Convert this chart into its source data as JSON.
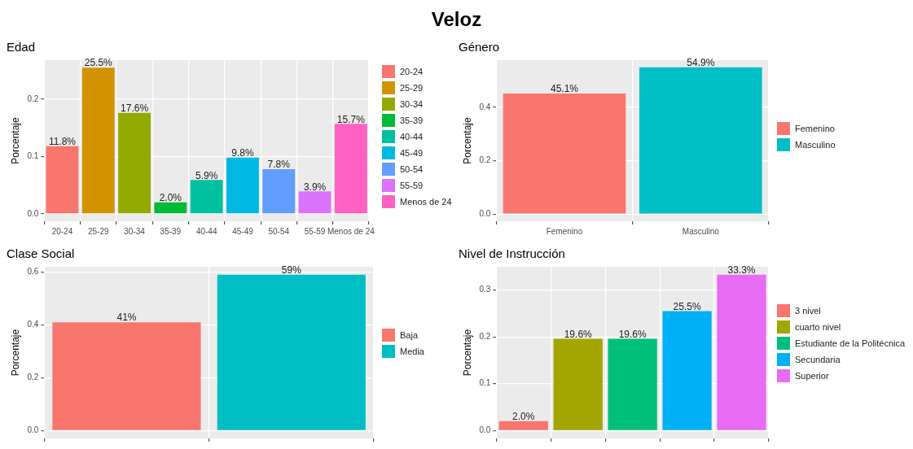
{
  "chart_data": [
    {
      "type": "other",
      "title": "Veloz"
    },
    {
      "type": "bar",
      "title": "Edad",
      "ylabel": "Porcentaje",
      "categories": [
        "20-24",
        "25-29",
        "30-34",
        "35-39",
        "40-44",
        "45-49",
        "50-54",
        "55-59",
        "Menos de 24"
      ],
      "series": [
        {
          "name": "20-24",
          "color": "#f8766d",
          "values": [
            0.118,
            null,
            null,
            null,
            null,
            null,
            null,
            null,
            null
          ],
          "value_labels": [
            "11.8%",
            null,
            null,
            null,
            null,
            null,
            null,
            null,
            null
          ]
        },
        {
          "name": "25-29",
          "color": "#d39200",
          "values": [
            null,
            0.255,
            null,
            null,
            null,
            null,
            null,
            null,
            null
          ],
          "value_labels": [
            null,
            "25.5%",
            null,
            null,
            null,
            null,
            null,
            null,
            null
          ]
        },
        {
          "name": "30-34",
          "color": "#93aa00",
          "values": [
            null,
            null,
            0.176,
            null,
            null,
            null,
            null,
            null,
            null
          ],
          "value_labels": [
            null,
            null,
            "17.6%",
            null,
            null,
            null,
            null,
            null,
            null
          ]
        },
        {
          "name": "35-39",
          "color": "#00ba38",
          "values": [
            null,
            null,
            null,
            0.02,
            null,
            null,
            null,
            null,
            null
          ],
          "value_labels": [
            null,
            null,
            null,
            "2.0%",
            null,
            null,
            null,
            null,
            null
          ]
        },
        {
          "name": "40-44",
          "color": "#00c19f",
          "values": [
            null,
            null,
            null,
            null,
            0.059,
            null,
            null,
            null,
            null
          ],
          "value_labels": [
            null,
            null,
            null,
            null,
            "5.9%",
            null,
            null,
            null,
            null
          ]
        },
        {
          "name": "45-49",
          "color": "#00b9e3",
          "values": [
            null,
            null,
            null,
            null,
            null,
            0.098,
            null,
            null,
            null
          ],
          "value_labels": [
            null,
            null,
            null,
            null,
            null,
            "9.8%",
            null,
            null,
            null
          ]
        },
        {
          "name": "50-54",
          "color": "#619cff",
          "values": [
            null,
            null,
            null,
            null,
            null,
            null,
            0.078,
            null,
            null
          ],
          "value_labels": [
            null,
            null,
            null,
            null,
            null,
            null,
            "7.8%",
            null,
            null
          ]
        },
        {
          "name": "55-59",
          "color": "#db72fb",
          "values": [
            null,
            null,
            null,
            null,
            null,
            null,
            null,
            0.039,
            null
          ],
          "value_labels": [
            null,
            null,
            null,
            null,
            null,
            null,
            null,
            "3.9%",
            null
          ]
        },
        {
          "name": "Menos de 24",
          "color": "#ff61c3",
          "values": [
            null,
            null,
            null,
            null,
            null,
            null,
            null,
            null,
            0.157
          ],
          "value_labels": [
            null,
            null,
            null,
            null,
            null,
            null,
            null,
            null,
            "15.7%"
          ]
        }
      ],
      "ylim": [
        -0.013,
        0.268
      ],
      "yticks": [
        {
          "value": 0,
          "label": "0.0"
        },
        {
          "value": 0.1,
          "label": "0.1"
        },
        {
          "value": 0.2,
          "label": "0.2"
        }
      ],
      "grid": true,
      "legend": "right"
    },
    {
      "type": "bar",
      "title": "Género",
      "ylabel": "Porcentaje",
      "categories": [
        "Femenino",
        "Masculino"
      ],
      "series": [
        {
          "name": "Femenino",
          "color": "#f8766d",
          "values": [
            0.451,
            null
          ],
          "value_labels": [
            "45.1%",
            null
          ]
        },
        {
          "name": "Masculino",
          "color": "#00bfc4",
          "values": [
            null,
            0.549
          ],
          "value_labels": [
            null,
            "54.9%"
          ]
        }
      ],
      "ylim": [
        -0.027,
        0.576
      ],
      "yticks": [
        {
          "value": 0,
          "label": "0.0"
        },
        {
          "value": 0.2,
          "label": "0.2"
        },
        {
          "value": 0.4,
          "label": "0.4"
        }
      ],
      "grid": true,
      "legend": "right"
    },
    {
      "type": "bar",
      "title": "Clase Social",
      "ylabel": "Porcentaje",
      "categories": [
        null,
        null
      ],
      "series": [
        {
          "name": "Baja",
          "color": "#f8766d",
          "values": [
            0.41,
            null
          ],
          "value_labels": [
            "41%",
            null
          ]
        },
        {
          "name": "Media",
          "color": "#00bfc4",
          "values": [
            null,
            0.59
          ],
          "value_labels": [
            null,
            "59%"
          ]
        }
      ],
      "ylim": [
        -0.03,
        0.62
      ],
      "yticks": [
        {
          "value": 0,
          "label": "0.0"
        },
        {
          "value": 0.2,
          "label": "0.2"
        },
        {
          "value": 0.4,
          "label": "0.4"
        },
        {
          "value": 0.6,
          "label": "0.6"
        }
      ],
      "grid": true,
      "legend": "right",
      "tick_labels": "y"
    },
    {
      "type": "bar",
      "title": "Nivel de Instrucción",
      "ylabel": "Porcentaje",
      "categories": [
        null,
        null,
        null,
        null,
        null
      ],
      "series": [
        {
          "name": "3 nivel",
          "color": "#f8766d",
          "values": [
            0.02,
            null,
            null,
            null,
            null
          ],
          "value_labels": [
            "2.0%",
            null,
            null,
            null,
            null
          ]
        },
        {
          "name": "cuarto nivel",
          "color": "#a3a500",
          "values": [
            null,
            0.196,
            null,
            null,
            null
          ],
          "value_labels": [
            null,
            "19.6%",
            null,
            null,
            null
          ]
        },
        {
          "name": "Estudiante de la Politécnica",
          "color": "#00bf7d",
          "values": [
            null,
            null,
            0.196,
            null,
            null
          ],
          "value_labels": [
            null,
            null,
            "19.6%",
            null,
            null
          ]
        },
        {
          "name": "Secundaria",
          "color": "#00b0f6",
          "values": [
            null,
            null,
            null,
            0.255,
            null
          ],
          "value_labels": [
            null,
            null,
            null,
            "25.5%",
            null
          ]
        },
        {
          "name": "Superior",
          "color": "#e76bf3",
          "values": [
            null,
            null,
            null,
            null,
            0.333
          ],
          "value_labels": [
            null,
            null,
            null,
            null,
            "33.3%"
          ]
        }
      ],
      "ylim": [
        -0.017,
        0.35
      ],
      "yticks": [
        {
          "value": 0,
          "label": "0.0"
        },
        {
          "value": 0.1,
          "label": "0.1"
        },
        {
          "value": 0.2,
          "label": "0.2"
        },
        {
          "value": 0.3,
          "label": "0.3"
        }
      ],
      "grid": true,
      "legend": "right",
      "tick_labels": "y"
    }
  ]
}
